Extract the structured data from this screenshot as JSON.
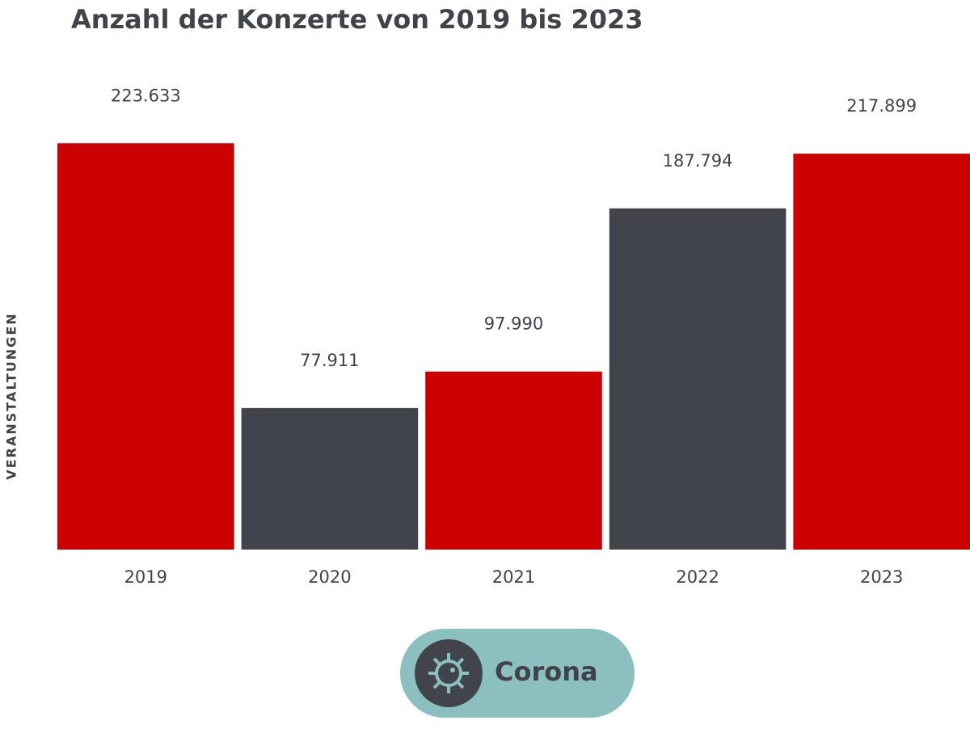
{
  "chart_data": {
    "type": "bar",
    "title": "Anzahl der Konzerte von 2019 bis 2023",
    "y_label": "VERANSTALTUNGEN",
    "categories": [
      "2019",
      "2020",
      "2021",
      "2022",
      "2023"
    ],
    "values": [
      223633,
      77911,
      97990,
      187794,
      217899
    ],
    "value_labels": [
      "223.633",
      "77.911",
      "97.990",
      "187.794",
      "217.899"
    ],
    "colors": [
      "#cc0000",
      "#41444b",
      "#cc0000",
      "#41444b",
      "#cc0000"
    ],
    "ylim": [
      0,
      250000
    ],
    "legend": {
      "label": "Corona",
      "color": "#8bbfc0"
    }
  }
}
